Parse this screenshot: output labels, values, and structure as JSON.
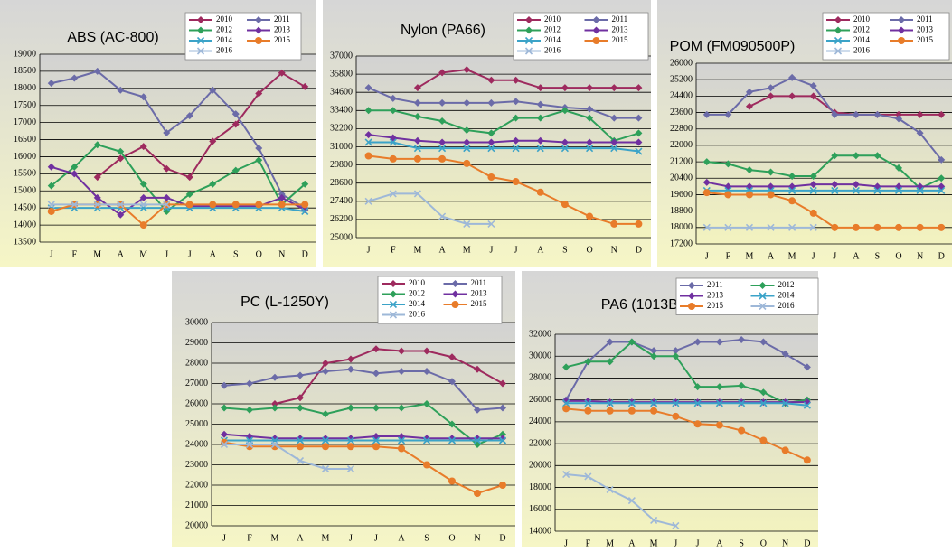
{
  "chart_data": [
    {
      "type": "line",
      "title": "ABS (AC-800)",
      "categories": [
        "J",
        "F",
        "M",
        "A",
        "M",
        "J",
        "J",
        "A",
        "S",
        "O",
        "N",
        "D"
      ],
      "ylim": [
        13500,
        19000
      ],
      "yticks": [
        13500,
        14000,
        14500,
        15000,
        15500,
        16000,
        16500,
        17000,
        17500,
        18000,
        18500,
        19000
      ],
      "grid": true,
      "legend": "top-right",
      "series": [
        {
          "name": "2010",
          "color": "#9e2a5e",
          "marker": "diamond",
          "values": [
            null,
            null,
            15400,
            15950,
            16300,
            15650,
            15400,
            16450,
            16950,
            17850,
            18450,
            18050
          ]
        },
        {
          "name": "2011",
          "color": "#6b6ba8",
          "marker": "diamond",
          "values": [
            18150,
            18300,
            18500,
            17950,
            17750,
            16700,
            17200,
            17950,
            17250,
            16250,
            14900,
            14500
          ]
        },
        {
          "name": "2012",
          "color": "#2ea05a",
          "marker": "diamond",
          "values": [
            15150,
            15700,
            16350,
            16150,
            15200,
            14400,
            14900,
            15200,
            15600,
            15900,
            14600,
            15200
          ]
        },
        {
          "name": "2013",
          "color": "#7030a0",
          "marker": "diamond",
          "values": [
            15700,
            15500,
            14800,
            14300,
            14800,
            14800,
            14550,
            14550,
            14550,
            14550,
            14800,
            14450
          ]
        },
        {
          "name": "2014",
          "color": "#3ba3c8",
          "marker": "x",
          "values": [
            14500,
            14500,
            14500,
            14500,
            14500,
            14500,
            14500,
            14500,
            14500,
            14500,
            14500,
            14400
          ]
        },
        {
          "name": "2015",
          "color": "#e87c2a",
          "marker": "circle",
          "values": [
            14400,
            14600,
            14600,
            14600,
            14000,
            14600,
            14600,
            14600,
            14600,
            14600,
            14600,
            14600
          ]
        },
        {
          "name": "2016",
          "color": "#9eb8d8",
          "marker": "x",
          "values": [
            14600,
            14600,
            14600,
            14600,
            14600,
            14600,
            null,
            null,
            null,
            null,
            null,
            null
          ]
        }
      ]
    },
    {
      "type": "line",
      "title": "Nylon (PA66)",
      "categories": [
        "J",
        "F",
        "M",
        "A",
        "M",
        "J",
        "J",
        "A",
        "S",
        "O",
        "N",
        "D"
      ],
      "ylim": [
        25000,
        37000
      ],
      "yticks": [
        25000,
        26200,
        27400,
        28600,
        29800,
        31000,
        32200,
        33400,
        34600,
        35800,
        37000
      ],
      "grid": true,
      "legend": "top-right",
      "series": [
        {
          "name": "2010",
          "color": "#9e2a5e",
          "marker": "diamond",
          "values": [
            null,
            null,
            34900,
            35900,
            36100,
            35400,
            35400,
            34900,
            34900,
            34900,
            34900,
            34900
          ]
        },
        {
          "name": "2011",
          "color": "#6b6ba8",
          "marker": "diamond",
          "values": [
            34900,
            34200,
            33900,
            33900,
            33900,
            33900,
            34000,
            33800,
            33600,
            33500,
            32900,
            32900
          ]
        },
        {
          "name": "2012",
          "color": "#2ea05a",
          "marker": "diamond",
          "values": [
            33400,
            33400,
            33000,
            32700,
            32100,
            31900,
            32900,
            32900,
            33400,
            32900,
            31400,
            31900
          ]
        },
        {
          "name": "2013",
          "color": "#7030a0",
          "marker": "diamond",
          "values": [
            31800,
            31600,
            31400,
            31300,
            31300,
            31300,
            31400,
            31400,
            31300,
            31300,
            31300,
            31300
          ]
        },
        {
          "name": "2014",
          "color": "#3ba3c8",
          "marker": "x",
          "values": [
            31300,
            31300,
            30900,
            30900,
            30900,
            30900,
            30900,
            30900,
            30900,
            30900,
            30900,
            30700
          ]
        },
        {
          "name": "2015",
          "color": "#e87c2a",
          "marker": "circle",
          "values": [
            30400,
            30200,
            30200,
            30200,
            29900,
            29000,
            28700,
            28000,
            27200,
            26400,
            25900,
            25900
          ]
        },
        {
          "name": "2016",
          "color": "#9eb8d8",
          "marker": "x",
          "values": [
            27400,
            27900,
            27900,
            26400,
            25900,
            25900,
            null,
            null,
            null,
            null,
            null,
            null
          ]
        }
      ]
    },
    {
      "type": "line",
      "title": "POM (FM090500P)",
      "categories": [
        "J",
        "F",
        "M",
        "A",
        "M",
        "J",
        "J",
        "A",
        "S",
        "O",
        "N",
        "D"
      ],
      "ylim": [
        17200,
        26000
      ],
      "yticks": [
        17200,
        18000,
        18800,
        19600,
        20400,
        21200,
        22000,
        22800,
        23600,
        24400,
        25200,
        26000
      ],
      "grid": true,
      "legend": "top-right",
      "series": [
        {
          "name": "2010",
          "color": "#9e2a5e",
          "marker": "diamond",
          "values": [
            null,
            null,
            23900,
            24400,
            24400,
            24400,
            23600,
            23500,
            23500,
            23500,
            23500,
            23500
          ]
        },
        {
          "name": "2011",
          "color": "#6b6ba8",
          "marker": "diamond",
          "values": [
            23500,
            23500,
            24600,
            24800,
            25300,
            24900,
            23500,
            23500,
            23500,
            23300,
            22600,
            21300
          ]
        },
        {
          "name": "2012",
          "color": "#2ea05a",
          "marker": "diamond",
          "values": [
            21200,
            21100,
            20800,
            20700,
            20500,
            20500,
            21500,
            21500,
            21500,
            20900,
            19900,
            20400
          ]
        },
        {
          "name": "2013",
          "color": "#7030a0",
          "marker": "diamond",
          "values": [
            20200,
            20000,
            20000,
            20000,
            20000,
            20100,
            20100,
            20100,
            20000,
            20000,
            20000,
            20000
          ]
        },
        {
          "name": "2014",
          "color": "#3ba3c8",
          "marker": "x",
          "values": [
            19800,
            19800,
            19800,
            19800,
            19800,
            19800,
            19800,
            19800,
            19800,
            19800,
            19800,
            19800
          ]
        },
        {
          "name": "2015",
          "color": "#e87c2a",
          "marker": "circle",
          "values": [
            19700,
            19600,
            19600,
            19600,
            19300,
            18700,
            18000,
            18000,
            18000,
            18000,
            18000,
            18000
          ]
        },
        {
          "name": "2016",
          "color": "#9eb8d8",
          "marker": "x",
          "values": [
            18000,
            18000,
            18000,
            18000,
            18000,
            18000,
            null,
            null,
            null,
            null,
            null,
            null
          ]
        }
      ]
    },
    {
      "type": "line",
      "title": "PC (L-1250Y)",
      "categories": [
        "J",
        "F",
        "M",
        "A",
        "M",
        "J",
        "J",
        "A",
        "S",
        "O",
        "N",
        "D"
      ],
      "ylim": [
        20000,
        30000
      ],
      "yticks": [
        20000,
        21000,
        22000,
        23000,
        24000,
        25000,
        26000,
        27000,
        28000,
        29000,
        30000
      ],
      "grid": true,
      "legend": "top-right",
      "series": [
        {
          "name": "2010",
          "color": "#9e2a5e",
          "marker": "diamond",
          "values": [
            null,
            null,
            26000,
            26300,
            28000,
            28200,
            28700,
            28600,
            28600,
            28300,
            27700,
            27000
          ]
        },
        {
          "name": "2011",
          "color": "#6b6ba8",
          "marker": "diamond",
          "values": [
            26900,
            27000,
            27300,
            27400,
            27600,
            27700,
            27500,
            27600,
            27600,
            27100,
            25700,
            25800
          ]
        },
        {
          "name": "2012",
          "color": "#2ea05a",
          "marker": "diamond",
          "values": [
            25800,
            25700,
            25800,
            25800,
            25500,
            25800,
            25800,
            25800,
            26000,
            25000,
            24000,
            24500
          ]
        },
        {
          "name": "2013",
          "color": "#7030a0",
          "marker": "diamond",
          "values": [
            24500,
            24400,
            24300,
            24300,
            24300,
            24300,
            24400,
            24400,
            24300,
            24300,
            24300,
            24300
          ]
        },
        {
          "name": "2014",
          "color": "#3ba3c8",
          "marker": "x",
          "values": [
            24200,
            24200,
            24200,
            24200,
            24200,
            24200,
            24200,
            24200,
            24200,
            24200,
            24200,
            24200
          ]
        },
        {
          "name": "2015",
          "color": "#e87c2a",
          "marker": "circle",
          "values": [
            24100,
            23900,
            23900,
            23900,
            23900,
            23900,
            23900,
            23800,
            23000,
            22200,
            21600,
            22000
          ]
        },
        {
          "name": "2016",
          "color": "#9eb8d8",
          "marker": "x",
          "values": [
            24000,
            24000,
            24000,
            23200,
            22800,
            22800,
            null,
            null,
            null,
            null,
            null,
            null
          ]
        }
      ]
    },
    {
      "type": "line",
      "title": "PA6 (1013B)",
      "categories": [
        "J",
        "F",
        "M",
        "A",
        "M",
        "J",
        "J",
        "A",
        "S",
        "O",
        "N",
        "D"
      ],
      "ylim": [
        14000,
        32000
      ],
      "yticks": [
        14000,
        16000,
        18000,
        20000,
        22000,
        24000,
        26000,
        28000,
        30000,
        32000
      ],
      "grid": true,
      "legend": "top-right",
      "series": [
        {
          "name": "2011",
          "color": "#6b6ba8",
          "marker": "diamond",
          "values": [
            26000,
            29500,
            31300,
            31300,
            30500,
            30500,
            31300,
            31300,
            31500,
            31300,
            30200,
            29000
          ]
        },
        {
          "name": "2012",
          "color": "#2ea05a",
          "marker": "diamond",
          "values": [
            29000,
            29500,
            29500,
            31300,
            30000,
            30000,
            27200,
            27200,
            27300,
            26700,
            25700,
            26000
          ]
        },
        {
          "name": "2013",
          "color": "#7030a0",
          "marker": "diamond",
          "values": [
            25900,
            25900,
            25800,
            25800,
            25800,
            25800,
            25800,
            25800,
            25800,
            25800,
            25800,
            25800
          ]
        },
        {
          "name": "2014",
          "color": "#3ba3c8",
          "marker": "x",
          "values": [
            25700,
            25700,
            25700,
            25700,
            25700,
            25700,
            25700,
            25700,
            25700,
            25700,
            25700,
            25500
          ]
        },
        {
          "name": "2015",
          "color": "#e87c2a",
          "marker": "circle",
          "values": [
            25200,
            25000,
            25000,
            25000,
            25000,
            24500,
            23800,
            23700,
            23200,
            22300,
            21400,
            20500
          ]
        },
        {
          "name": "2016",
          "color": "#9eb8d8",
          "marker": "x",
          "values": [
            19200,
            19000,
            17800,
            16800,
            15000,
            14500,
            null,
            null,
            null,
            null,
            null,
            null
          ]
        }
      ]
    }
  ]
}
